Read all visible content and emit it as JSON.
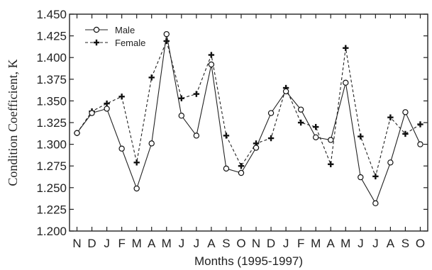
{
  "chart_data": {
    "type": "line",
    "xlabel": "Months (1995-1997)",
    "ylabel": "Condition Coefficient, K",
    "ylim": [
      1.2,
      1.45
    ],
    "yticks": [
      "1.200",
      "1.225",
      "1.250",
      "1.275",
      "1.300",
      "1.325",
      "1.350",
      "1.375",
      "1.400",
      "1.425",
      "1.450"
    ],
    "categories": [
      "N",
      "D",
      "J",
      "F",
      "M",
      "A",
      "M",
      "J",
      "J",
      "A",
      "S",
      "O",
      "N",
      "D",
      "J",
      "F",
      "M",
      "A",
      "M",
      "J",
      "J",
      "A",
      "S",
      "O"
    ],
    "grid": false,
    "legend_position": "top-left",
    "series": [
      {
        "name": "Male",
        "line_style": "solid",
        "marker": "open-circle",
        "values": [
          1.313,
          1.336,
          1.341,
          1.295,
          1.249,
          1.301,
          1.427,
          1.333,
          1.31,
          1.392,
          1.272,
          1.267,
          1.296,
          1.336,
          1.361,
          1.34,
          1.308,
          1.305,
          1.371,
          1.262,
          1.232,
          1.279,
          1.337,
          1.3
        ]
      },
      {
        "name": "Female",
        "line_style": "dashed",
        "marker": "plus",
        "values": [
          1.313,
          1.338,
          1.347,
          1.355,
          1.279,
          1.377,
          1.419,
          1.353,
          1.358,
          1.403,
          1.31,
          1.275,
          1.301,
          1.307,
          1.365,
          1.325,
          1.32,
          1.277,
          1.411,
          1.309,
          1.263,
          1.331,
          1.312,
          1.323
        ]
      }
    ]
  }
}
